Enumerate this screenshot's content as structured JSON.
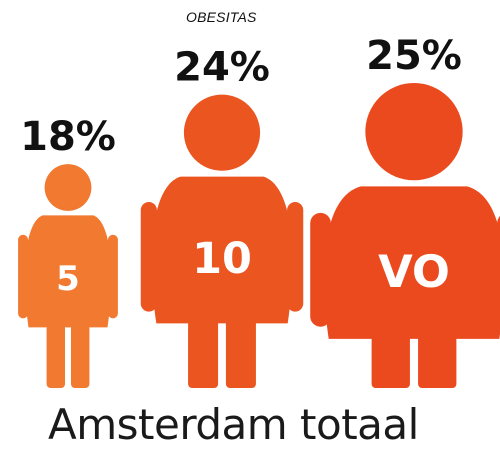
{
  "chart_data": {
    "type": "bar",
    "title": "OBESITAS",
    "categories": [
      "5",
      "10",
      "VO"
    ],
    "values": [
      18,
      24,
      25
    ],
    "value_labels": [
      "18%",
      "24%",
      "25%"
    ],
    "footer": "Amsterdam totaal",
    "colors": [
      "#f17930",
      "#ea5520",
      "#eb4a1e"
    ]
  }
}
